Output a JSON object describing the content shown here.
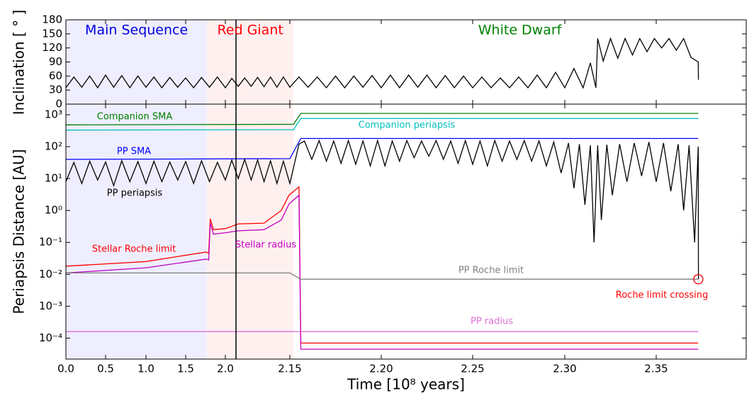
{
  "chart_data": [
    {
      "type": "line",
      "ylabel": "Inclination [ ° ]",
      "ylim": [
        0,
        180
      ],
      "yticks": [
        0,
        30,
        60,
        90,
        120,
        150,
        180
      ],
      "phases": [
        {
          "name": "Main Sequence",
          "start": 0,
          "end": 1.77,
          "color": "#0000dd",
          "fill": "#eeeeff"
        },
        {
          "name": "Red Giant",
          "start": 1.77,
          "end": 2.152,
          "color": "#ff0000",
          "fill": "#fff0f0"
        },
        {
          "name": "White Dwarf",
          "start": 2.152,
          "end": 2.4,
          "color": "#008000",
          "fill": "none"
        }
      ],
      "series": [
        {
          "color": "#000000",
          "x": [
            0,
            0.1,
            0.2,
            0.3,
            0.4,
            0.5,
            0.6,
            0.7,
            0.8,
            0.9,
            1.0,
            1.1,
            1.2,
            1.3,
            1.4,
            1.5,
            1.6,
            1.7,
            1.8,
            1.9,
            2.0,
            2.015,
            2.03,
            2.045,
            2.06,
            2.075,
            2.09,
            2.105,
            2.12,
            2.135,
            2.15,
            2.155,
            2.16,
            2.165,
            2.17,
            2.175,
            2.18,
            2.185,
            2.19,
            2.195,
            2.2,
            2.205,
            2.21,
            2.215,
            2.22,
            2.225,
            2.23,
            2.235,
            2.24,
            2.245,
            2.25,
            2.255,
            2.26,
            2.265,
            2.27,
            2.275,
            2.28,
            2.285,
            2.29,
            2.295,
            2.3,
            2.305,
            2.31,
            2.314,
            2.317,
            2.318,
            2.321,
            2.325,
            2.329,
            2.333,
            2.337,
            2.341,
            2.345,
            2.349,
            2.353,
            2.357,
            2.361,
            2.365,
            2.369,
            2.373,
            2.3731
          ],
          "values": [
            35,
            58,
            36,
            60,
            35,
            62,
            36,
            61,
            35,
            60,
            36,
            58,
            35,
            57,
            36,
            56,
            35,
            57,
            36,
            58,
            35,
            55,
            38,
            56,
            38,
            57,
            37,
            58,
            36,
            58,
            36,
            58,
            36,
            58,
            35,
            60,
            35,
            60,
            36,
            61,
            35,
            62,
            35,
            62,
            36,
            62,
            35,
            61,
            35,
            60,
            35,
            58,
            35,
            56,
            35,
            58,
            35,
            62,
            35,
            68,
            35,
            76,
            35,
            88,
            35,
            140,
            92,
            140,
            98,
            140,
            105,
            140,
            112,
            140,
            120,
            140,
            115,
            140,
            100,
            90,
            52
          ]
        }
      ]
    },
    {
      "type": "line",
      "log": true,
      "ylabel": "Periapsis Distance [AU]",
      "xlabel": "Time [10⁸  years]",
      "xlim": [
        0,
        2.4
      ],
      "xticks": [
        {
          "value": 0,
          "label": "0.0"
        },
        {
          "value": 0.5,
          "label": "0.5"
        },
        {
          "value": 1,
          "label": "1.0"
        },
        {
          "value": 1.5,
          "label": "1.5"
        },
        {
          "value": 2,
          "label": "2.0"
        },
        {
          "value": 2.15,
          "label": "2.15"
        },
        {
          "value": 2.2,
          "label": "2.20"
        },
        {
          "value": 2.25,
          "label": "2.25"
        },
        {
          "value": 2.3,
          "label": "2.30"
        },
        {
          "value": 2.35,
          "label": "2.35"
        }
      ],
      "ylim": [
        2.2e-05,
        2150
      ],
      "yticks": [
        {
          "value": 0.0001,
          "label": "10⁻⁴"
        },
        {
          "value": 0.001,
          "label": "10⁻³"
        },
        {
          "value": 0.01,
          "label": "10⁻²"
        },
        {
          "value": 0.1,
          "label": "10⁻¹"
        },
        {
          "value": 1,
          "label": "10⁰"
        },
        {
          "value": 10,
          "label": "10¹"
        },
        {
          "value": 100,
          "label": "10²"
        },
        {
          "value": 1000,
          "label": "10³"
        }
      ],
      "series": [
        {
          "name": "Companion SMA",
          "color": "#008000",
          "x": [
            0,
            2.152,
            2.156,
            2.373
          ],
          "values": [
            480,
            500,
            1100,
            1100
          ]
        },
        {
          "name": "Companion periapsis",
          "color": "#00bfbf",
          "x": [
            0,
            2.152,
            2.156,
            2.373
          ],
          "values": [
            330,
            340,
            760,
            760
          ]
        },
        {
          "name": "PP SMA",
          "color": "#0000ff",
          "x": [
            0,
            2.15,
            2.156,
            2.373
          ],
          "values": [
            40,
            42,
            180,
            180
          ]
        },
        {
          "name": "PP periapsis",
          "color": "#000000",
          "x": [
            0,
            0.1,
            0.2,
            0.3,
            0.4,
            0.5,
            0.6,
            0.7,
            0.8,
            0.9,
            1.0,
            1.1,
            1.2,
            1.3,
            1.4,
            1.5,
            1.6,
            1.7,
            1.8,
            1.9,
            2.0,
            2.015,
            2.03,
            2.045,
            2.06,
            2.075,
            2.09,
            2.105,
            2.12,
            2.135,
            2.15,
            2.155,
            2.158,
            2.162,
            2.166,
            2.17,
            2.174,
            2.178,
            2.182,
            2.186,
            2.19,
            2.194,
            2.198,
            2.202,
            2.206,
            2.21,
            2.214,
            2.218,
            2.222,
            2.226,
            2.23,
            2.234,
            2.238,
            2.242,
            2.246,
            2.25,
            2.254,
            2.258,
            2.262,
            2.266,
            2.27,
            2.274,
            2.278,
            2.282,
            2.286,
            2.29,
            2.294,
            2.298,
            2.302,
            2.305,
            2.308,
            2.311,
            2.314,
            2.316,
            2.318,
            2.32,
            2.323,
            2.326,
            2.33,
            2.334,
            2.338,
            2.342,
            2.346,
            2.35,
            2.354,
            2.358,
            2.362,
            2.365,
            2.368,
            2.371,
            2.373,
            2.3731
          ],
          "values": [
            8,
            32,
            7,
            35,
            9,
            33,
            6,
            36,
            8,
            34,
            7,
            35,
            8,
            33,
            9,
            34,
            7,
            36,
            8,
            32,
            9,
            38,
            10,
            40,
            9,
            38,
            8,
            36,
            7,
            35,
            7,
            120,
            150,
            40,
            155,
            35,
            150,
            30,
            155,
            28,
            150,
            25,
            155,
            25,
            150,
            35,
            155,
            45,
            150,
            50,
            155,
            40,
            150,
            30,
            155,
            28,
            150,
            25,
            155,
            35,
            150,
            40,
            155,
            35,
            150,
            25,
            140,
            15,
            130,
            5,
            120,
            1.5,
            110,
            0.1,
            110,
            0.5,
            115,
            3,
            120,
            8,
            130,
            12,
            140,
            8,
            130,
            4,
            120,
            1,
            110,
            0.1,
            100,
            0.007
          ]
        },
        {
          "name": "Stellar Roche limit",
          "color": "#ff0000",
          "x": [
            0,
            1.0,
            1.76,
            1.79,
            1.81,
            1.85,
            2.0,
            2.03,
            2.09,
            2.13,
            2.148,
            2.155,
            2.156,
            2.373
          ],
          "values": [
            0.018,
            0.025,
            0.05,
            0.045,
            0.55,
            0.25,
            0.27,
            0.38,
            0.4,
            1.0,
            3,
            5.5,
            7e-05,
            7e-05
          ]
        },
        {
          "name": "Stellar radius",
          "color": "#bf00bf",
          "x": [
            0,
            1.0,
            1.76,
            1.79,
            1.81,
            1.85,
            2.0,
            2.03,
            2.09,
            2.13,
            2.148,
            2.155,
            2.156,
            2.373
          ],
          "values": [
            0.011,
            0.016,
            0.03,
            0.028,
            0.4,
            0.18,
            0.2,
            0.23,
            0.25,
            0.5,
            1.6,
            3,
            4.5e-05,
            4.5e-05
          ]
        },
        {
          "name": "PP Roche limit",
          "color": "#808080",
          "x": [
            0,
            2.15,
            2.156,
            2.373
          ],
          "values": [
            0.011,
            0.011,
            0.007,
            0.007
          ]
        },
        {
          "name": "PP radius",
          "color": "#da70d6",
          "x": [
            0,
            2.373
          ],
          "values": [
            0.00016,
            0.00016
          ]
        }
      ],
      "annotation": {
        "text": "Roche limit crossing",
        "x": 2.373,
        "y": 0.007,
        "color": "#ff0000"
      }
    }
  ]
}
